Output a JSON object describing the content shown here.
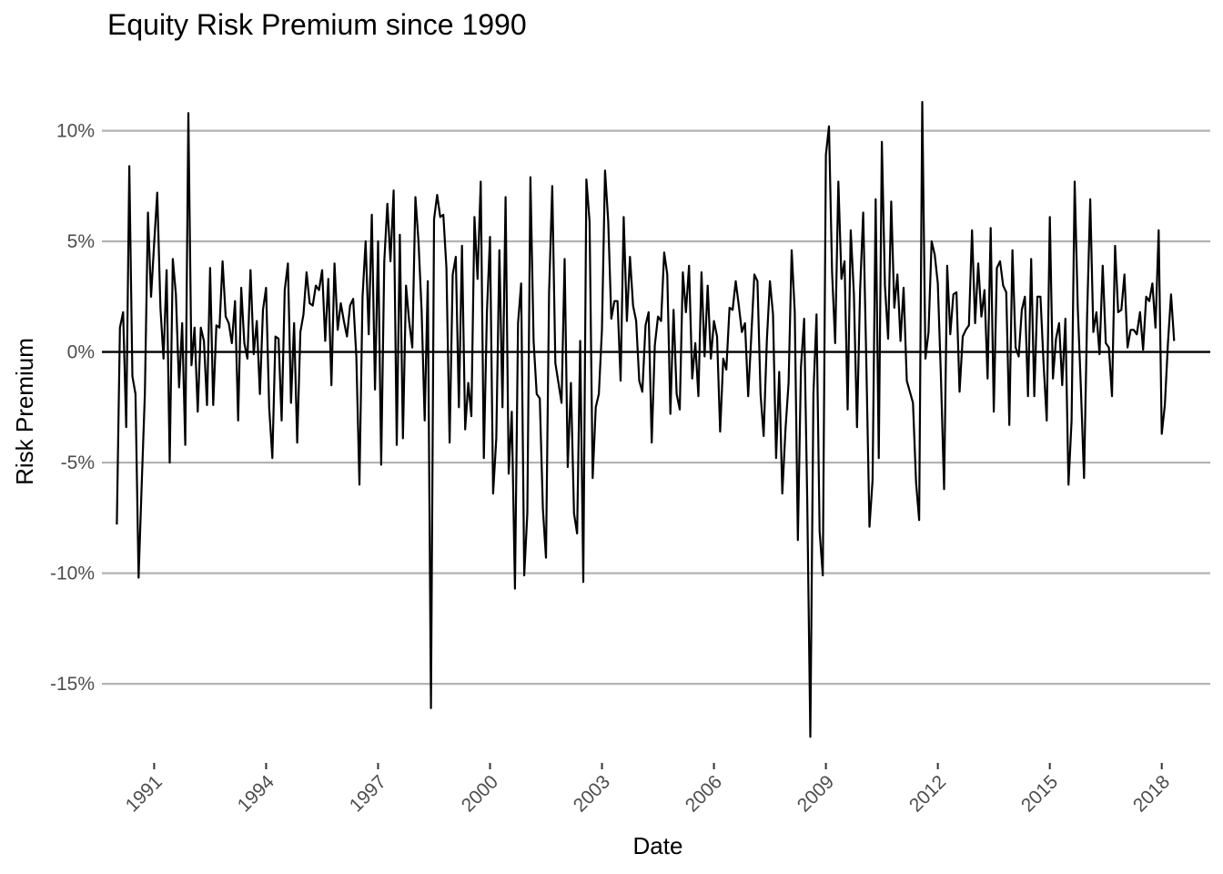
{
  "chart_data": {
    "type": "line",
    "title": "Equity Risk Premium since 1990",
    "xlabel": "Date",
    "ylabel": "Risk Premium",
    "xlim": [
      1989.6,
      2019.3
    ],
    "ylim": [
      -18.0,
      12.0
    ],
    "y_ticks": [
      10,
      5,
      0,
      -5,
      -10,
      -15
    ],
    "y_tick_labels": [
      "10%",
      "5%",
      "0%",
      "-5%",
      "-10%",
      "-15%"
    ],
    "x_ticks": [
      1991,
      1994,
      1997,
      2000,
      2003,
      2006,
      2009,
      2012,
      2015,
      2018
    ],
    "x_tick_labels": [
      "1991",
      "1994",
      "1997",
      "2000",
      "2003",
      "2006",
      "2009",
      "2012",
      "2015",
      "2018"
    ],
    "grid": "horizontal major lines",
    "legend": "none",
    "reference_line": 0,
    "line_color": "#000000",
    "grid_color": "#b3b3b3",
    "series": [
      {
        "x": [
          1990.0,
          1990.083,
          1990.167,
          1990.25,
          1990.333,
          1990.417,
          1990.5,
          1990.583,
          1990.667,
          1990.75,
          1990.833,
          1990.917,
          1991.0,
          1991.083,
          1991.167,
          1991.25,
          1991.333,
          1991.417,
          1991.5,
          1991.583,
          1991.667,
          1991.75,
          1991.833,
          1991.917,
          1992.0,
          1992.083,
          1992.167,
          1992.25,
          1992.333,
          1992.417,
          1992.5,
          1992.583,
          1992.667,
          1992.75,
          1992.833,
          1992.917,
          1993.0,
          1993.083,
          1993.167,
          1993.25,
          1993.333,
          1993.417,
          1993.5,
          1993.583,
          1993.667,
          1993.75,
          1993.833,
          1993.917,
          1994.0,
          1994.083,
          1994.167,
          1994.25,
          1994.333,
          1994.417,
          1994.5,
          1994.583,
          1994.667,
          1994.75,
          1994.833,
          1994.917,
          1995.0,
          1995.083,
          1995.167,
          1995.25,
          1995.333,
          1995.417,
          1995.5,
          1995.583,
          1995.667,
          1995.75,
          1995.833,
          1995.917,
          1996.0,
          1996.083,
          1996.167,
          1996.25,
          1996.333,
          1996.417,
          1996.5,
          1996.583,
          1996.667,
          1996.75,
          1996.833,
          1996.917,
          1997.0,
          1997.083,
          1997.167,
          1997.25,
          1997.333,
          1997.417,
          1997.5,
          1997.583,
          1997.667,
          1997.75,
          1997.833,
          1997.917,
          1998.0,
          1998.083,
          1998.167,
          1998.25,
          1998.333,
          1998.417,
          1998.5,
          1998.583,
          1998.667,
          1998.75,
          1998.833,
          1998.917,
          1999.0,
          1999.083,
          1999.167,
          1999.25,
          1999.333,
          1999.417,
          1999.5,
          1999.583,
          1999.667,
          1999.75,
          1999.833,
          1999.917,
          2000.0,
          2000.083,
          2000.167,
          2000.25,
          2000.333,
          2000.417,
          2000.5,
          2000.583,
          2000.667,
          2000.75,
          2000.833,
          2000.917,
          2001.0,
          2001.083,
          2001.167,
          2001.25,
          2001.333,
          2001.417,
          2001.5,
          2001.583,
          2001.667,
          2001.75,
          2001.833,
          2001.917,
          2002.0,
          2002.083,
          2002.167,
          2002.25,
          2002.333,
          2002.417,
          2002.5,
          2002.583,
          2002.667,
          2002.75,
          2002.833,
          2002.917,
          2003.0,
          2003.083,
          2003.167,
          2003.25,
          2003.333,
          2003.417,
          2003.5,
          2003.583,
          2003.667,
          2003.75,
          2003.833,
          2003.917,
          2004.0,
          2004.083,
          2004.167,
          2004.25,
          2004.333,
          2004.417,
          2004.5,
          2004.583,
          2004.667,
          2004.75,
          2004.833,
          2004.917,
          2005.0,
          2005.083,
          2005.167,
          2005.25,
          2005.333,
          2005.417,
          2005.5,
          2005.583,
          2005.667,
          2005.75,
          2005.833,
          2005.917,
          2006.0,
          2006.083,
          2006.167,
          2006.25,
          2006.333,
          2006.417,
          2006.5,
          2006.583,
          2006.667,
          2006.75,
          2006.833,
          2006.917,
          2007.0,
          2007.083,
          2007.167,
          2007.25,
          2007.333,
          2007.417,
          2007.5,
          2007.583,
          2007.667,
          2007.75,
          2007.833,
          2007.917,
          2008.0,
          2008.083,
          2008.167,
          2008.25,
          2008.333,
          2008.417,
          2008.5,
          2008.583,
          2008.667,
          2008.75,
          2008.833,
          2008.917,
          2009.0,
          2009.083,
          2009.167,
          2009.25,
          2009.333,
          2009.417,
          2009.5,
          2009.583,
          2009.667,
          2009.75,
          2009.833,
          2009.917,
          2010.0,
          2010.083,
          2010.167,
          2010.25,
          2010.333,
          2010.417,
          2010.5,
          2010.583,
          2010.667,
          2010.75,
          2010.833,
          2010.917,
          2011.0,
          2011.083,
          2011.167,
          2011.25,
          2011.333,
          2011.417,
          2011.5,
          2011.583,
          2011.667,
          2011.75,
          2011.833,
          2011.917,
          2012.0,
          2012.083,
          2012.167,
          2012.25,
          2012.333,
          2012.417,
          2012.5,
          2012.583,
          2012.667,
          2012.75,
          2012.833,
          2012.917,
          2013.0,
          2013.083,
          2013.167,
          2013.25,
          2013.333,
          2013.417,
          2013.5,
          2013.583,
          2013.667,
          2013.75,
          2013.833,
          2013.917,
          2014.0,
          2014.083,
          2014.167,
          2014.25,
          2014.333,
          2014.417,
          2014.5,
          2014.583,
          2014.667,
          2014.75,
          2014.833,
          2014.917,
          2015.0,
          2015.083,
          2015.167,
          2015.25,
          2015.333,
          2015.417,
          2015.5,
          2015.583,
          2015.667,
          2015.75,
          2015.833,
          2015.917,
          2016.0,
          2016.083,
          2016.167,
          2016.25,
          2016.333,
          2016.417,
          2016.5,
          2016.583,
          2016.667,
          2016.75,
          2016.833,
          2016.917,
          2017.0,
          2017.083,
          2017.167,
          2017.25,
          2017.333,
          2017.417,
          2017.5,
          2017.583,
          2017.667,
          2017.75,
          2017.833,
          2017.917,
          2018.0,
          2018.083,
          2018.167,
          2018.25,
          2018.333
        ],
        "y": [
          -7.8,
          1.1,
          1.8,
          -3.4,
          8.4,
          -1.1,
          -1.9,
          -10.2,
          -5.9,
          -1.9,
          6.3,
          2.5,
          4.9,
          7.2,
          2.0,
          -0.3,
          3.7,
          -5.0,
          4.2,
          2.6,
          -1.6,
          1.3,
          -4.2,
          10.8,
          -0.6,
          1.1,
          -2.7,
          1.1,
          0.5,
          -2.4,
          3.8,
          -2.4,
          1.2,
          1.1,
          4.1,
          1.6,
          1.3,
          0.4,
          2.3,
          -3.1,
          2.9,
          0.4,
          -0.3,
          3.7,
          -0.1,
          1.4,
          -1.9,
          1.9,
          2.9,
          -2.5,
          -4.8,
          0.7,
          0.6,
          -3.1,
          2.8,
          4.0,
          -2.3,
          1.3,
          -4.1,
          0.9,
          1.7,
          3.6,
          2.2,
          2.1,
          3.0,
          2.8,
          3.7,
          0.5,
          3.3,
          -1.5,
          4.0,
          1.0,
          2.2,
          1.4,
          0.7,
          2.1,
          2.4,
          -0.2,
          -6.0,
          2.5,
          5.0,
          0.8,
          6.2,
          -1.7,
          5.0,
          -5.1,
          4.1,
          6.7,
          4.1,
          7.3,
          -4.2,
          5.3,
          -3.9,
          3.0,
          1.4,
          0.2,
          7.0,
          5.0,
          1.9,
          -3.1,
          3.2,
          -16.1,
          6.0,
          7.1,
          6.1,
          6.2,
          3.8,
          -4.1,
          3.5,
          4.3,
          -2.5,
          4.8,
          -3.5,
          -1.4,
          -2.9,
          6.1,
          3.3,
          7.7,
          -4.8,
          1.8,
          5.2,
          -6.4,
          -3.9,
          4.6,
          -2.5,
          7.0,
          -5.5,
          -2.7,
          -10.7,
          1.3,
          3.1,
          -10.1,
          -7.3,
          7.9,
          0.5,
          -1.9,
          -2.1,
          -7.1,
          -9.3,
          2.7,
          7.5,
          -0.5,
          -1.4,
          -2.3,
          4.2,
          -5.2,
          -1.4,
          -7.3,
          -8.2,
          0.5,
          -10.4,
          7.8,
          5.9,
          -5.7,
          -2.5,
          -1.9,
          1.0,
          8.2,
          5.9,
          1.5,
          2.3,
          2.3,
          -1.3,
          6.1,
          1.4,
          4.3,
          2.1,
          1.4,
          -1.3,
          -1.8,
          1.2,
          1.8,
          -4.1,
          0.3,
          1.6,
          1.4,
          4.5,
          3.5,
          -2.8,
          1.9,
          -1.9,
          -2.6,
          3.6,
          1.8,
          3.9,
          -1.2,
          0.4,
          -2.0,
          3.6,
          -0.2,
          3.0,
          -0.3,
          1.4,
          0.7,
          -3.6,
          -0.3,
          -0.8,
          2.0,
          1.9,
          3.2,
          2.1,
          0.9,
          1.3,
          -2.0,
          0.7,
          3.5,
          3.2,
          -1.9,
          -3.8,
          0.5,
          3.2,
          1.7,
          -4.8,
          -0.9,
          -6.4,
          -3.5,
          -1.4,
          4.6,
          1.8,
          -8.5,
          -0.7,
          1.5,
          -6.7,
          -17.4,
          -1.9,
          1.7,
          -8.1,
          -10.1,
          8.9,
          10.2,
          3.6,
          0.4,
          7.7,
          3.3,
          4.1,
          -2.6,
          5.5,
          2.6,
          -3.4,
          2.8,
          6.3,
          -0.4,
          -7.9,
          -5.8,
          6.9,
          -4.8,
          9.5,
          3.0,
          0.6,
          6.8,
          2.0,
          3.5,
          0.5,
          2.9,
          -1.3,
          -1.8,
          -2.3,
          -5.9,
          -7.6,
          11.3,
          -0.3,
          0.9,
          5.0,
          4.4,
          3.1,
          -1.1,
          -6.2,
          3.9,
          0.8,
          2.6,
          2.7,
          -1.8,
          0.7,
          1.0,
          1.2,
          5.5,
          1.3,
          4.0,
          1.6,
          2.8,
          -1.2,
          5.6,
          -2.7,
          3.8,
          4.1,
          3.0,
          2.7,
          -3.3,
          4.6,
          0.2,
          -0.2,
          1.9,
          2.5,
          -2.0,
          4.2,
          -2.0,
          2.5,
          2.5,
          -0.5,
          -3.1,
          6.1,
          -1.2,
          0.6,
          1.3,
          -1.5,
          1.5,
          -6.0,
          -3.1,
          7.7,
          2.0,
          -1.6,
          -5.7,
          1.7,
          6.9,
          0.9,
          1.8,
          -0.1,
          3.9,
          0.4,
          0.2,
          -2.0,
          4.8,
          1.8,
          1.9,
          3.5,
          0.2,
          1.0,
          1.0,
          0.8,
          1.8,
          0.1,
          2.5,
          2.3,
          3.1,
          1.1,
          5.5,
          -3.7,
          -2.4,
          0.4,
          2.6,
          0.5
        ]
      }
    ]
  }
}
